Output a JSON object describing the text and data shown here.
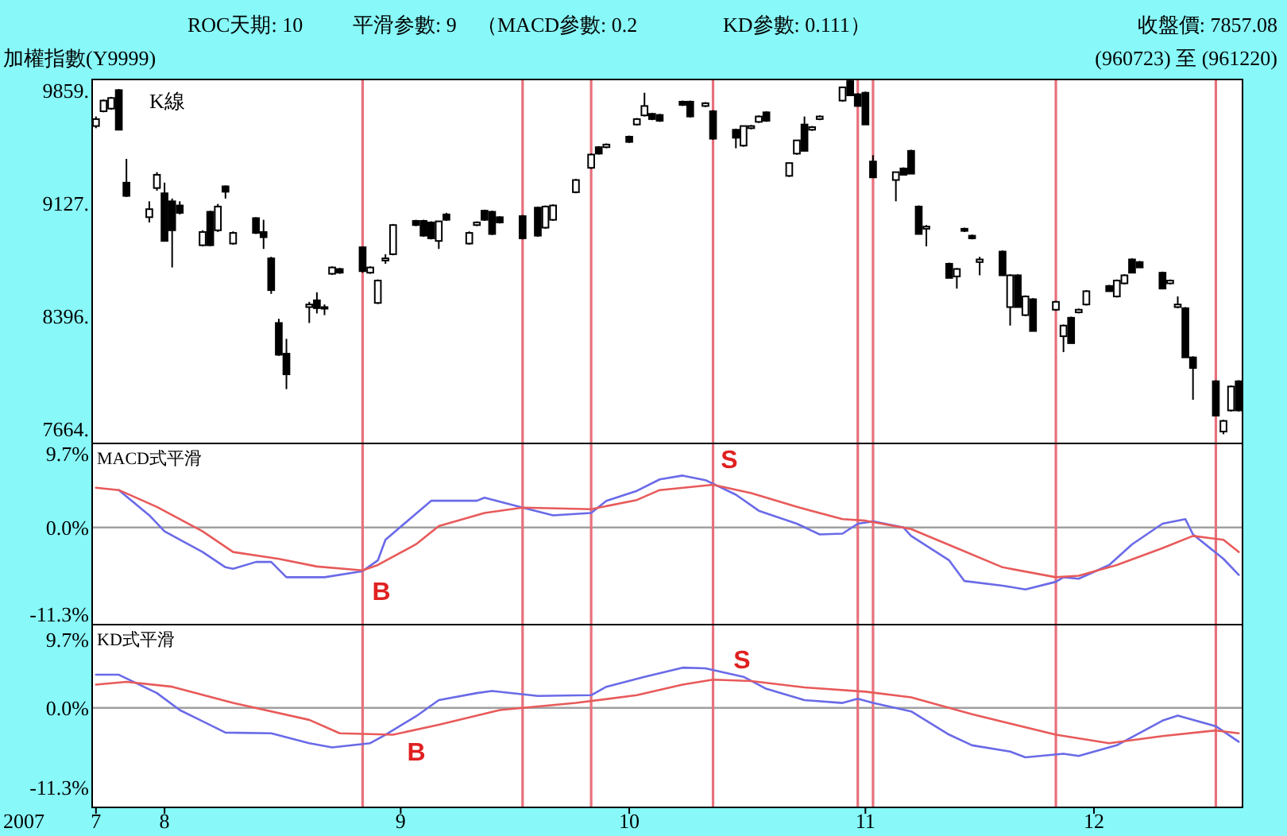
{
  "chart_data": [
    {
      "type": "candlestick",
      "title": "加權指數(Y9999)",
      "subtitle": "(960723) 至 (961220)",
      "annotations": [
        "ROC天期: 10",
        "平滑参數: 9",
        "（MACD參數: 0.2",
        "KD參數: 0.111）",
        "收盤價: 7857.08",
        "K線"
      ],
      "x": [
        "2007-07-23",
        "2007-07-24",
        "2007-07-25",
        "2007-07-26",
        "2007-07-27",
        "2007-07-30",
        "2007-07-31",
        "2007-08-01",
        "2007-08-02",
        "2007-08-03",
        "2007-08-06",
        "2007-08-07",
        "2007-08-08",
        "2007-08-09",
        "2007-08-10",
        "2007-08-13",
        "2007-08-14",
        "2007-08-15",
        "2007-08-16",
        "2007-08-17",
        "2007-08-20",
        "2007-08-21",
        "2007-08-22",
        "2007-08-23",
        "2007-08-24",
        "2007-08-27",
        "2007-08-28",
        "2007-08-29",
        "2007-08-30",
        "2007-08-31",
        "2007-09-03",
        "2007-09-04",
        "2007-09-05",
        "2007-09-06",
        "2007-09-07",
        "2007-09-10",
        "2007-09-11",
        "2007-09-12",
        "2007-09-13",
        "2007-09-14",
        "2007-09-17",
        "2007-09-19",
        "2007-09-20",
        "2007-09-21",
        "2007-09-24",
        "2007-09-26",
        "2007-09-27",
        "2007-09-28",
        "2007-10-01",
        "2007-10-02",
        "2007-10-03",
        "2007-10-04",
        "2007-10-05",
        "2007-10-08",
        "2007-10-09",
        "2007-10-11",
        "2007-10-12",
        "2007-10-15",
        "2007-10-16",
        "2007-10-17",
        "2007-10-18",
        "2007-10-19",
        "2007-10-22",
        "2007-10-23",
        "2007-10-24",
        "2007-10-25",
        "2007-10-26",
        "2007-10-29",
        "2007-10-30",
        "2007-10-31",
        "2007-11-01",
        "2007-11-02",
        "2007-11-05",
        "2007-11-06",
        "2007-11-07",
        "2007-11-08",
        "2007-11-09",
        "2007-11-12",
        "2007-11-13",
        "2007-11-14",
        "2007-11-15",
        "2007-11-16",
        "2007-11-19",
        "2007-11-20",
        "2007-11-21",
        "2007-11-22",
        "2007-11-23",
        "2007-11-26",
        "2007-11-27",
        "2007-11-28",
        "2007-11-29",
        "2007-11-30",
        "2007-12-03",
        "2007-12-04",
        "2007-12-05",
        "2007-12-06",
        "2007-12-07",
        "2007-12-10",
        "2007-12-11",
        "2007-12-12",
        "2007-12-13",
        "2007-12-14",
        "2007-12-17",
        "2007-12-18",
        "2007-12-19",
        "2007-12-20"
      ],
      "ohlc": [
        [
          9629,
          9691,
          9615,
          9674
        ],
        [
          9725,
          9801,
          9718,
          9794
        ],
        [
          9742,
          9818,
          9735,
          9811
        ],
        [
          9862,
          9869,
          9605,
          9605
        ],
        [
          9262,
          9416,
          9169,
          9176
        ],
        [
          9038,
          9141,
          9004,
          9090
        ],
        [
          9227,
          9330,
          9210,
          9313
        ],
        [
          9193,
          9262,
          8884,
          8884
        ],
        [
          9141,
          9159,
          8712,
          8953
        ],
        [
          9114,
          9141,
          9056,
          9066
        ],
        [
          8856,
          8953,
          8849,
          8942
        ],
        [
          9073,
          9080,
          8849,
          8856
        ],
        [
          8953,
          9124,
          8942,
          9107
        ],
        [
          9238,
          9244,
          9159,
          9203
        ],
        [
          8867,
          8946,
          8860,
          8936
        ],
        [
          9032,
          9038,
          8929,
          8936
        ],
        [
          8942,
          9021,
          8832,
          8908
        ],
        [
          8771,
          8781,
          8541,
          8565
        ],
        [
          8352,
          8379,
          8139,
          8146
        ],
        [
          8153,
          8249,
          7923,
          8019
        ],
        [
          8455,
          8489,
          8352,
          8472
        ],
        [
          8499,
          8551,
          8414,
          8448
        ],
        [
          8448,
          8472,
          8403,
          8455
        ],
        [
          8671,
          8719,
          8664,
          8712
        ],
        [
          8702,
          8709,
          8671,
          8678
        ],
        [
          8843,
          8849,
          8678,
          8688
        ],
        [
          8678,
          8719,
          8671,
          8712
        ],
        [
          8482,
          8634,
          8475,
          8627
        ],
        [
          8757,
          8798,
          8736,
          8771
        ],
        [
          8798,
          8994,
          8791,
          8987
        ],
        [
          9014,
          9021,
          8980,
          8987
        ],
        [
          9014,
          9021,
          8911,
          8918
        ],
        [
          9004,
          9011,
          8894,
          8901
        ],
        [
          8884,
          9011,
          8832,
          9011
        ],
        [
          9056,
          9066,
          9014,
          9021
        ],
        [
          8867,
          8946,
          8860,
          8936
        ],
        [
          8987,
          9011,
          8980,
          9004
        ],
        [
          9080,
          9087,
          9014,
          9021
        ],
        [
          9073,
          9080,
          8922,
          8929
        ],
        [
          9038,
          9045,
          8997,
          9004
        ],
        [
          9045,
          9052,
          8894,
          8901
        ],
        [
          9100,
          9107,
          8911,
          8918
        ],
        [
          8970,
          9114,
          8963,
          9107
        ],
        [
          9021,
          9121,
          9014,
          9114
        ],
        [
          9200,
          9286,
          9193,
          9279
        ],
        [
          9358,
          9451,
          9351,
          9444
        ],
        [
          9492,
          9499,
          9444,
          9450
        ],
        [
          9492,
          9516,
          9485,
          9509
        ],
        [
          9560,
          9567,
          9519,
          9526
        ],
        [
          9639,
          9681,
          9632,
          9674
        ],
        [
          9698,
          9845,
          9691,
          9759
        ],
        [
          9708,
          9715,
          9667,
          9674
        ],
        [
          9701,
          9708,
          9656,
          9663
        ],
        [
          9787,
          9794,
          9759,
          9766
        ],
        [
          9787,
          9794,
          9684,
          9691
        ],
        [
          9759,
          9784,
          9752,
          9777
        ],
        [
          9725,
          9732,
          9540,
          9547
        ],
        [
          9605,
          9612,
          9485,
          9553
        ],
        [
          9502,
          9629,
          9495,
          9629
        ],
        [
          9615,
          9636,
          9608,
          9629
        ],
        [
          9656,
          9698,
          9649,
          9691
        ],
        [
          9718,
          9725,
          9656,
          9663
        ],
        [
          9306,
          9389,
          9299,
          9389
        ],
        [
          9450,
          9536,
          9443,
          9536
        ],
        [
          9639,
          9691,
          9468,
          9468
        ],
        [
          9605,
          9629,
          9598,
          9622
        ],
        [
          9674,
          9698,
          9667,
          9691
        ],
        [
          9794,
          9880,
          9787,
          9880
        ],
        [
          9920,
          9925,
          9828,
          9828
        ],
        [
          9835,
          9842,
          9759,
          9759
        ],
        [
          9845,
          9852,
          9639,
          9639
        ],
        [
          9399,
          9440,
          9296,
          9296
        ],
        [
          9279,
          9330,
          9141,
          9330
        ],
        [
          9354,
          9361,
          9313,
          9313
        ],
        [
          9468,
          9475,
          9320,
          9320
        ],
        [
          9107,
          9114,
          8929,
          8929
        ],
        [
          8963,
          8987,
          8849,
          8977
        ],
        [
          8736,
          8743,
          8644,
          8644
        ],
        [
          8654,
          8709,
          8575,
          8702
        ],
        [
          8963,
          8970,
          8942,
          8949
        ],
        [
          8918,
          8925,
          8894,
          8901
        ],
        [
          8747,
          8781,
          8661,
          8764
        ],
        [
          8815,
          8822,
          8661,
          8661
        ],
        [
          8455,
          8668,
          8335,
          8661
        ],
        [
          8661,
          8668,
          8455,
          8455
        ],
        [
          8403,
          8531,
          8396,
          8524
        ],
        [
          8506,
          8513,
          8300,
          8300
        ],
        [
          8438,
          8496,
          8431,
          8489
        ],
        [
          8266,
          8342,
          8163,
          8335
        ],
        [
          8386,
          8393,
          8221,
          8221
        ],
        [
          8421,
          8445,
          8414,
          8438
        ],
        [
          8472,
          8565,
          8465,
          8558
        ],
        [
          8592,
          8599,
          8558,
          8558
        ],
        [
          8524,
          8634,
          8517,
          8627
        ],
        [
          8609,
          8668,
          8602,
          8661
        ],
        [
          8764,
          8771,
          8678,
          8678
        ],
        [
          8747,
          8754,
          8712,
          8712
        ],
        [
          8678,
          8685,
          8575,
          8575
        ],
        [
          8609,
          8634,
          8602,
          8627
        ],
        [
          8455,
          8524,
          8448,
          8472
        ],
        [
          8448,
          8455,
          8129,
          8129
        ],
        [
          8129,
          8136,
          7854,
          8060
        ],
        [
          7974,
          7981,
          7751,
          7751
        ],
        [
          7648,
          7724,
          7631,
          7717
        ],
        [
          7785,
          7947,
          7778,
          7940
        ],
        [
          7974,
          7981,
          7778,
          7785
        ]
      ],
      "xlim": [
        "2007-07-22T12:00",
        "2007-12-20T12:00"
      ],
      "ylim": [
        7571,
        9931
      ],
      "yticks": [
        {
          "value": 9859,
          "label": "9859."
        },
        {
          "value": 9127,
          "label": "9127."
        },
        {
          "value": 8396,
          "label": "8396."
        },
        {
          "value": 7664,
          "label": "7664."
        }
      ],
      "tick_labels": "y",
      "ref_lines": [
        {
          "axis": "x",
          "value": "2007-08-27",
          "color": "#e8707c"
        },
        {
          "axis": "x",
          "value": "2007-09-17",
          "color": "#e8707c"
        },
        {
          "axis": "x",
          "value": "2007-09-26",
          "color": "#e8707c"
        },
        {
          "axis": "x",
          "value": "2007-10-12",
          "color": "#e8707c"
        },
        {
          "axis": "x",
          "value": "2007-10-31",
          "color": "#e8707c"
        },
        {
          "axis": "x",
          "value": "2007-11-02",
          "color": "#e8707c"
        },
        {
          "axis": "x",
          "value": "2007-11-26",
          "color": "#e8707c"
        },
        {
          "axis": "x",
          "value": "2007-12-17",
          "color": "#e8707c"
        }
      ]
    },
    {
      "type": "line",
      "title": "MACD式平滑",
      "series": [
        {
          "color": "#6a6ae8",
          "x": [
            "2007-07-26",
            "2007-07-30",
            "2007-08-01",
            "2007-08-06",
            "2007-08-09",
            "2007-08-10",
            "2007-08-13",
            "2007-08-15",
            "2007-08-17",
            "2007-08-22",
            "2007-08-27",
            "2007-08-29",
            "2007-08-30",
            "2007-09-03",
            "2007-09-05",
            "2007-09-11",
            "2007-09-12",
            "2007-09-17",
            "2007-09-21",
            "2007-09-26",
            "2007-09-28",
            "2007-10-02",
            "2007-10-05",
            "2007-10-08",
            "2007-10-11",
            "2007-10-15",
            "2007-10-18",
            "2007-10-23",
            "2007-10-26",
            "2007-10-29",
            "2007-10-31",
            "2007-11-02",
            "2007-11-06",
            "2007-11-07",
            "2007-11-12",
            "2007-11-14",
            "2007-11-19",
            "2007-11-22",
            "2007-11-26",
            "2007-11-27",
            "2007-11-29",
            "2007-12-03",
            "2007-12-06",
            "2007-12-10",
            "2007-12-13",
            "2007-12-14",
            "2007-12-18",
            "2007-12-20"
          ],
          "values": [
            4.9,
            1.6,
            -0.5,
            -3.2,
            -5.2,
            -5.4,
            -4.5,
            -4.5,
            -6.5,
            -6.5,
            -5.7,
            -4.3,
            -1.6,
            1.8,
            3.5,
            3.5,
            3.9,
            2.6,
            1.6,
            1.9,
            3.5,
            4.8,
            6.3,
            6.8,
            6.2,
            4.3,
            2.2,
            0.5,
            -0.9,
            -0.8,
            0.5,
            0.8,
            0.0,
            -1.1,
            -4.3,
            -7.0,
            -7.6,
            -8.1,
            -7.1,
            -6.5,
            -6.7,
            -4.9,
            -2.2,
            0.5,
            1.1,
            -0.9,
            -4.1,
            -6.2
          ]
        },
        {
          "color": "#e85a5a",
          "x": [
            "2007-07-23",
            "2007-07-26",
            "2007-07-31",
            "2007-08-06",
            "2007-08-10",
            "2007-08-16",
            "2007-08-21",
            "2007-08-27",
            "2007-08-29",
            "2007-09-03",
            "2007-09-06",
            "2007-09-12",
            "2007-09-17",
            "2007-09-26",
            "2007-10-02",
            "2007-10-05",
            "2007-10-12",
            "2007-10-17",
            "2007-10-23",
            "2007-10-29",
            "2007-11-01",
            "2007-11-07",
            "2007-11-13",
            "2007-11-19",
            "2007-11-26",
            "2007-11-29",
            "2007-12-04",
            "2007-12-10",
            "2007-12-14",
            "2007-12-18",
            "2007-12-20"
          ],
          "values": [
            5.2,
            4.9,
            2.7,
            -0.5,
            -3.2,
            -4.1,
            -5.1,
            -5.6,
            -4.9,
            -2.2,
            0.2,
            1.9,
            2.6,
            2.4,
            3.6,
            4.9,
            5.6,
            4.5,
            2.7,
            1.1,
            0.9,
            -0.2,
            -2.7,
            -5.2,
            -6.5,
            -6.3,
            -4.9,
            -2.7,
            -1.1,
            -1.6,
            -3.2
          ]
        }
      ],
      "annotations": [
        "B",
        "S"
      ],
      "xlim": [
        "2007-07-22T12:00",
        "2007-12-20T12:00"
      ],
      "ylim": [
        -12.7,
        11.0
      ],
      "yticks": [
        {
          "value": 9.7,
          "label": "9.7%"
        },
        {
          "value": 0,
          "label": "0.0%"
        },
        {
          "value": -11.3,
          "label": "-11.3%"
        }
      ],
      "tick_labels": "y",
      "ref_lines": [
        {
          "axis": "y",
          "value": 0,
          "color": "#a0a0a0"
        },
        {
          "axis": "x",
          "value": "2007-08-27",
          "color": "#e8707c"
        },
        {
          "axis": "x",
          "value": "2007-09-17",
          "color": "#e8707c"
        },
        {
          "axis": "x",
          "value": "2007-09-26",
          "color": "#e8707c"
        },
        {
          "axis": "x",
          "value": "2007-10-12",
          "color": "#e8707c"
        },
        {
          "axis": "x",
          "value": "2007-10-31",
          "color": "#e8707c"
        },
        {
          "axis": "x",
          "value": "2007-11-02",
          "color": "#e8707c"
        },
        {
          "axis": "x",
          "value": "2007-11-26",
          "color": "#e8707c"
        },
        {
          "axis": "x",
          "value": "2007-12-17",
          "color": "#e8707c"
        }
      ]
    },
    {
      "type": "line",
      "title": "KD式平滑",
      "series": [
        {
          "color": "#6a6ae8",
          "x": [
            "2007-07-23",
            "2007-07-26",
            "2007-07-31",
            "2007-08-03",
            "2007-08-09",
            "2007-08-15",
            "2007-08-20",
            "2007-08-23",
            "2007-08-28",
            "2007-08-30",
            "2007-09-03",
            "2007-09-06",
            "2007-09-11",
            "2007-09-13",
            "2007-09-19",
            "2007-09-26",
            "2007-09-28",
            "2007-10-03",
            "2007-10-08",
            "2007-10-11",
            "2007-10-16",
            "2007-10-19",
            "2007-10-24",
            "2007-10-29",
            "2007-10-31",
            "2007-11-02",
            "2007-11-07",
            "2007-11-12",
            "2007-11-15",
            "2007-11-20",
            "2007-11-22",
            "2007-11-27",
            "2007-11-29",
            "2007-12-04",
            "2007-12-10",
            "2007-12-12",
            "2007-12-17",
            "2007-12-20"
          ],
          "values": [
            4.7,
            4.7,
            2.1,
            -0.3,
            -3.5,
            -3.6,
            -5.0,
            -5.6,
            -5.0,
            -3.8,
            -1.2,
            1.1,
            2.1,
            2.4,
            1.7,
            1.8,
            3.0,
            4.4,
            5.7,
            5.6,
            4.4,
            2.7,
            1.1,
            0.7,
            1.3,
            0.7,
            -0.5,
            -3.8,
            -5.3,
            -6.2,
            -7.0,
            -6.5,
            -6.8,
            -5.3,
            -1.8,
            -1.1,
            -2.6,
            -4.8
          ]
        },
        {
          "color": "#e85a5a",
          "x": [
            "2007-07-23",
            "2007-07-27",
            "2007-08-02",
            "2007-08-10",
            "2007-08-20",
            "2007-08-24",
            "2007-08-31",
            "2007-09-06",
            "2007-09-14",
            "2007-09-24",
            "2007-10-02",
            "2007-10-08",
            "2007-10-12",
            "2007-10-17",
            "2007-10-24",
            "2007-11-01",
            "2007-11-07",
            "2007-11-15",
            "2007-11-26",
            "2007-12-03",
            "2007-12-10",
            "2007-12-17",
            "2007-12-20"
          ],
          "values": [
            3.3,
            3.7,
            3.0,
            0.7,
            -1.7,
            -3.6,
            -3.8,
            -2.4,
            -0.3,
            0.7,
            1.8,
            3.3,
            4.0,
            3.8,
            2.9,
            2.3,
            1.5,
            -0.9,
            -3.8,
            -5.0,
            -4.0,
            -3.2,
            -3.6
          ]
        }
      ],
      "annotations": [
        "S",
        "B",
        "2007"
      ],
      "xlim": [
        "2007-07-22T12:00",
        "2007-12-20T12:00"
      ],
      "ylim": [
        -14.1,
        11.8
      ],
      "xticks": [
        {
          "value": "2007-07-23",
          "label": "7"
        },
        {
          "value": "2007-08-01",
          "label": "8"
        },
        {
          "value": "2007-09-01",
          "label": "9"
        },
        {
          "value": "2007-10-01",
          "label": "10"
        },
        {
          "value": "2007-11-01",
          "label": "11"
        },
        {
          "value": "2007-12-01",
          "label": "12"
        }
      ],
      "yticks": [
        {
          "value": 9.7,
          "label": "9.7%"
        },
        {
          "value": 0,
          "label": "0.0%"
        },
        {
          "value": -11.3,
          "label": "-11.3%"
        }
      ],
      "ref_lines": [
        {
          "axis": "y",
          "value": 0,
          "color": "#a0a0a0"
        },
        {
          "axis": "x",
          "value": "2007-08-27",
          "color": "#e8707c"
        },
        {
          "axis": "x",
          "value": "2007-09-17",
          "color": "#e8707c"
        },
        {
          "axis": "x",
          "value": "2007-09-26",
          "color": "#e8707c"
        },
        {
          "axis": "x",
          "value": "2007-10-12",
          "color": "#e8707c"
        },
        {
          "axis": "x",
          "value": "2007-10-31",
          "color": "#e8707c"
        },
        {
          "axis": "x",
          "value": "2007-11-02",
          "color": "#e8707c"
        },
        {
          "axis": "x",
          "value": "2007-11-26",
          "color": "#e8707c"
        },
        {
          "axis": "x",
          "value": "2007-12-17",
          "color": "#e8707c"
        }
      ]
    }
  ]
}
